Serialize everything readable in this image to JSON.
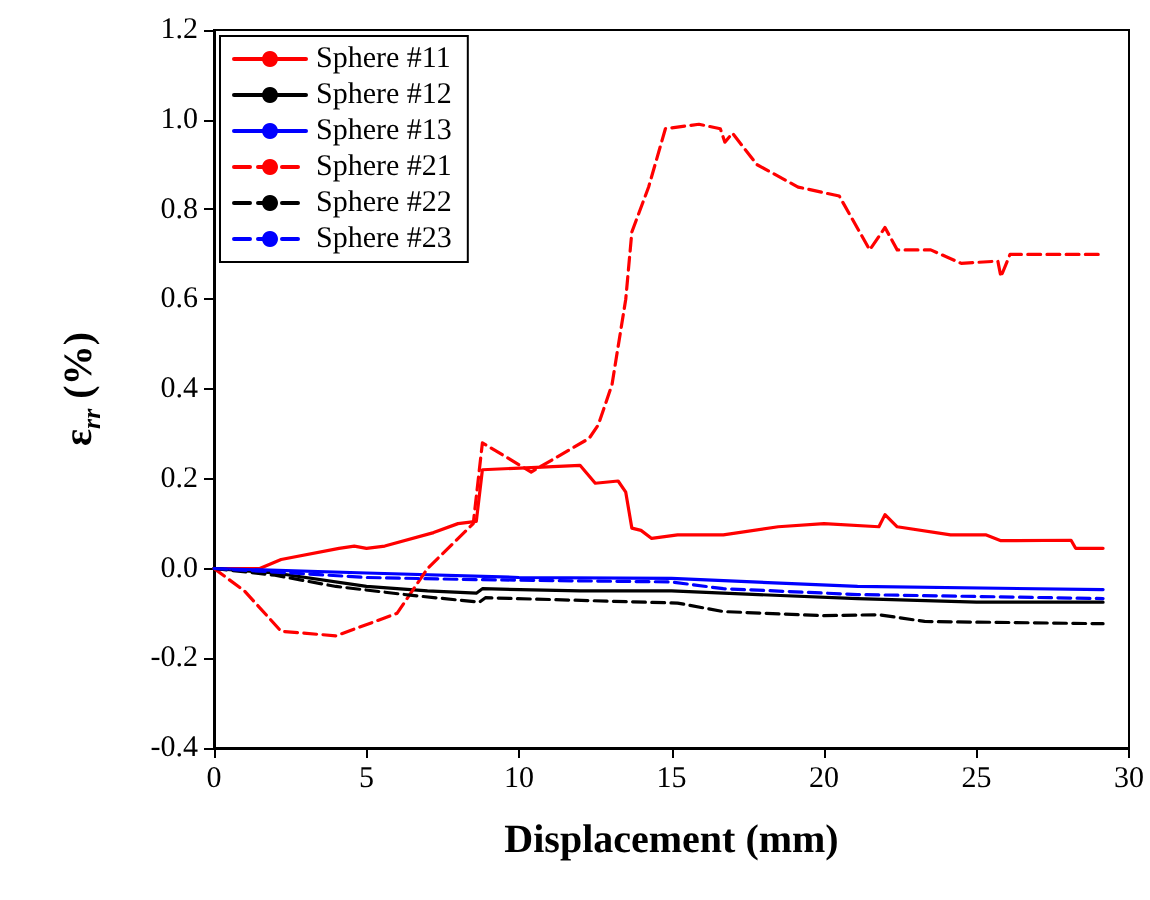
{
  "chart_data": {
    "type": "line",
    "xlabel": "Displacement (mm)",
    "ylabel": "ε$_{rr}$ (%)",
    "xlim": [
      0,
      30
    ],
    "xticks": [
      0,
      5,
      10,
      15,
      20,
      25,
      30
    ],
    "ylim": [
      -0.4,
      1.2
    ],
    "yticks": [
      {
        "value": -0.4,
        "label": "-0.4"
      },
      {
        "value": -0.2,
        "label": "-0.2"
      },
      {
        "value": 0,
        "label": "0.0"
      },
      {
        "value": 0.2,
        "label": "0.2"
      },
      {
        "value": 0.4,
        "label": "0.4"
      },
      {
        "value": 0.6,
        "label": "0.6"
      },
      {
        "value": 0.8,
        "label": "0.8"
      },
      {
        "value": 1.0,
        "label": "1.0"
      },
      {
        "value": 1.2,
        "label": "1.2"
      }
    ],
    "grid": false,
    "legend": "top left",
    "marker": "none",
    "series": [
      {
        "name": "Sphere #11",
        "color": "#ff0000",
        "line_style": "solid",
        "x": [
          0,
          1.5,
          2.2,
          4.1,
          4.6,
          5,
          5.6,
          7.2,
          8,
          8.6,
          8.8,
          10.4,
          12,
          12.5,
          13.25,
          13.5,
          13.7,
          14,
          14.35,
          15.2,
          16.7,
          18.5,
          20,
          21.8,
          22,
          22.4,
          24.15,
          25.3,
          25.8,
          28.1,
          28.25,
          29.15
        ],
        "values": [
          0,
          0,
          0.02,
          0.045,
          0.05,
          0.045,
          0.05,
          0.08,
          0.1,
          0.105,
          0.22,
          0.225,
          0.23,
          0.19,
          0.195,
          0.17,
          0.09,
          0.085,
          0.067,
          0.075,
          0.075,
          0.093,
          0.1,
          0.093,
          0.12,
          0.093,
          0.075,
          0.075,
          0.062,
          0.063,
          0.045,
          0.045
        ]
      },
      {
        "name": "Sphere #12",
        "color": "#000000",
        "line_style": "solid",
        "x": [
          0,
          2,
          5,
          7,
          8.6,
          8.8,
          12,
          15,
          16.7,
          21.1,
          25,
          29.15
        ],
        "values": [
          0,
          -0.01,
          -0.04,
          -0.05,
          -0.055,
          -0.045,
          -0.05,
          -0.05,
          -0.055,
          -0.067,
          -0.075,
          -0.075
        ]
      },
      {
        "name": "Sphere #13",
        "color": "#0000ff",
        "line_style": "solid",
        "x": [
          0,
          5,
          10,
          15,
          21.1,
          29.15
        ],
        "values": [
          0,
          -0.01,
          -0.02,
          -0.022,
          -0.04,
          -0.047
        ]
      },
      {
        "name": "Sphere #21",
        "color": "#ff0000",
        "line_style": "dashed",
        "x": [
          0,
          1,
          2.2,
          4,
          6,
          7,
          8.5,
          8.8,
          10.4,
          12.3,
          12.6,
          13.05,
          13.5,
          13.7,
          14.25,
          14.8,
          15.9,
          16.6,
          16.75,
          17,
          17.8,
          19.15,
          20.5,
          21.5,
          22,
          22.4,
          23.5,
          24.5,
          25.7,
          25.8,
          26.1,
          29.15
        ],
        "values": [
          0,
          -0.05,
          -0.14,
          -0.15,
          -0.1,
          0,
          0.1,
          0.28,
          0.215,
          0.29,
          0.32,
          0.41,
          0.6,
          0.75,
          0.85,
          0.98,
          0.99,
          0.98,
          0.95,
          0.97,
          0.9,
          0.85,
          0.83,
          0.71,
          0.76,
          0.71,
          0.71,
          0.68,
          0.685,
          0.65,
          0.7,
          0.7
        ]
      },
      {
        "name": "Sphere #22",
        "color": "#000000",
        "line_style": "dashed",
        "x": [
          0,
          2,
          4,
          6.5,
          8.7,
          8.9,
          10.4,
          15.2,
          16.7,
          20,
          21.8,
          23.3,
          29.15
        ],
        "values": [
          0,
          -0.015,
          -0.04,
          -0.06,
          -0.075,
          -0.065,
          -0.068,
          -0.077,
          -0.096,
          -0.105,
          -0.103,
          -0.118,
          -0.123
        ]
      },
      {
        "name": "Sphere #23",
        "color": "#0000ff",
        "line_style": "dashed",
        "x": [
          0,
          5,
          8.8,
          15,
          16.7,
          21.1,
          29.15
        ],
        "values": [
          0,
          -0.02,
          -0.025,
          -0.03,
          -0.045,
          -0.058,
          -0.067
        ]
      }
    ]
  }
}
